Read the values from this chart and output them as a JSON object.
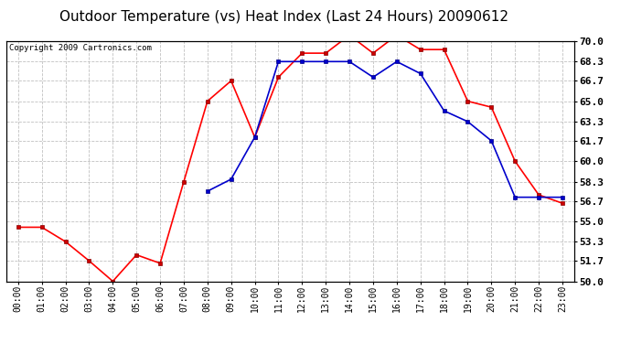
{
  "title": "Outdoor Temperature (vs) Heat Index (Last 24 Hours) 20090612",
  "copyright": "Copyright 2009 Cartronics.com",
  "hours": [
    "00:00",
    "01:00",
    "02:00",
    "03:00",
    "04:00",
    "05:00",
    "06:00",
    "07:00",
    "08:00",
    "09:00",
    "10:00",
    "11:00",
    "12:00",
    "13:00",
    "14:00",
    "15:00",
    "16:00",
    "17:00",
    "18:00",
    "19:00",
    "20:00",
    "21:00",
    "22:00",
    "23:00"
  ],
  "temp": [
    54.5,
    54.5,
    53.3,
    51.7,
    50.0,
    52.2,
    51.5,
    58.3,
    65.0,
    66.7,
    62.0,
    67.0,
    69.0,
    69.0,
    70.5,
    69.0,
    70.5,
    69.3,
    69.3,
    65.0,
    64.5,
    60.0,
    57.2,
    56.5
  ],
  "heat_index": [
    null,
    null,
    null,
    null,
    null,
    null,
    null,
    null,
    57.5,
    58.5,
    62.0,
    68.3,
    68.3,
    68.3,
    68.3,
    67.0,
    68.3,
    67.3,
    64.2,
    63.3,
    61.7,
    57.0,
    57.0,
    57.0
  ],
  "temp_color": "#ff0000",
  "heat_color": "#0000cc",
  "bg_color": "#ffffff",
  "grid_color": "#c0c0c0",
  "ylim": [
    50.0,
    70.0
  ],
  "yticks": [
    50.0,
    51.7,
    53.3,
    55.0,
    56.7,
    58.3,
    60.0,
    61.7,
    63.3,
    65.0,
    66.7,
    68.3,
    70.0
  ],
  "title_fontsize": 11,
  "copyright_fontsize": 6.5,
  "tick_fontsize": 7,
  "ytick_fontsize": 8
}
